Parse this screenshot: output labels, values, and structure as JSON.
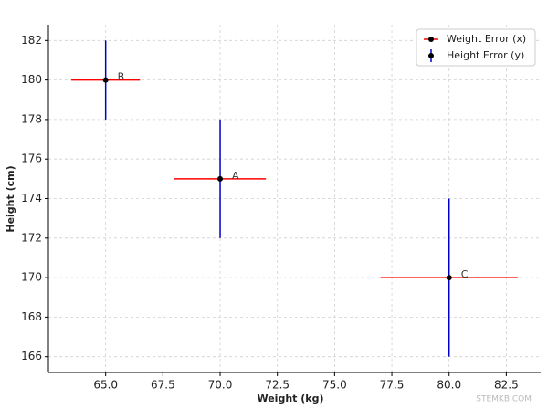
{
  "chart_data": {
    "type": "errorbar",
    "xlabel": "Weight (kg)",
    "ylabel": "Height (cm)",
    "x": [
      70,
      65,
      80
    ],
    "y": [
      175,
      180,
      170
    ],
    "xerr": [
      2,
      1.5,
      3
    ],
    "yerr": [
      3,
      2,
      4
    ],
    "point_labels": [
      "A",
      "B",
      "C"
    ],
    "xerr_name": "Weight Error (x)",
    "yerr_name": "Height Error (y)",
    "xerr_color": "#ff0000",
    "yerr_color": "#0000cc",
    "marker_color": "#000000",
    "xlim": [
      62.5,
      84
    ],
    "ylim": [
      165.2,
      182.8
    ],
    "xticks": [
      {
        "value": 65,
        "label": "65.0"
      },
      {
        "value": 67.5,
        "label": "67.5"
      },
      {
        "value": 70,
        "label": "70.0"
      },
      {
        "value": 72.5,
        "label": "72.5"
      },
      {
        "value": 75,
        "label": "75.0"
      },
      {
        "value": 77.5,
        "label": "77.5"
      },
      {
        "value": 80,
        "label": "80.0"
      },
      {
        "value": 82.5,
        "label": "82.5"
      }
    ],
    "yticks": [
      166,
      168,
      170,
      172,
      174,
      176,
      178,
      180,
      182
    ],
    "grid": true,
    "legend": "upper right"
  },
  "watermark": "STEMKB.COM"
}
